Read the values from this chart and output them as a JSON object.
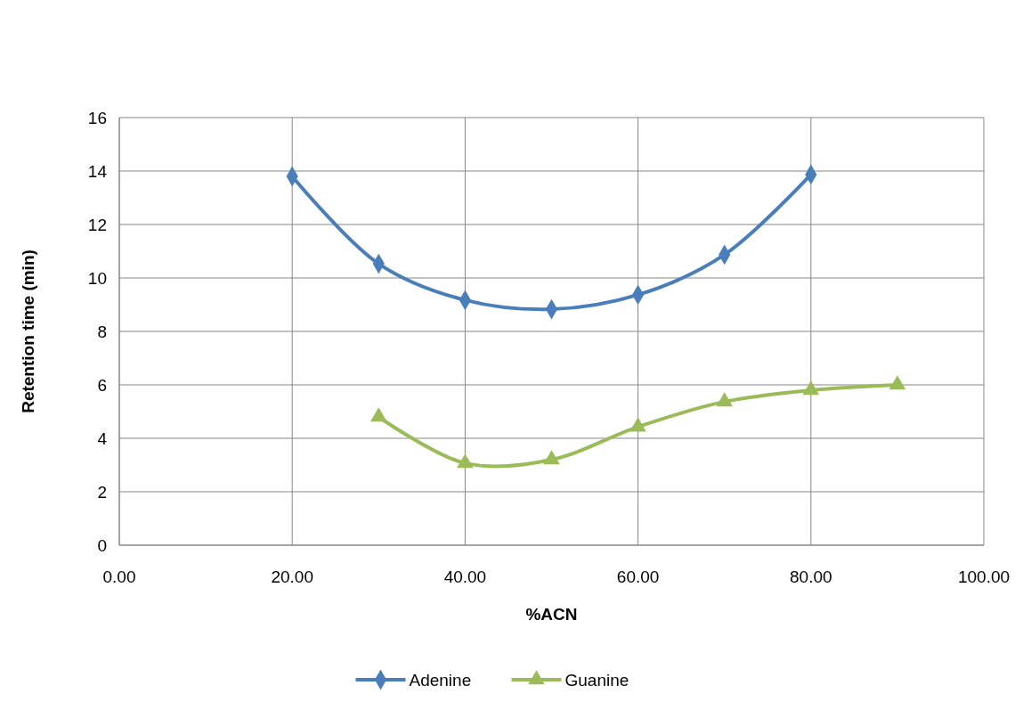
{
  "chart_data": {
    "type": "line",
    "xlabel": "%ACN",
    "ylabel": "Retention time (min)",
    "xlim": [
      0,
      100
    ],
    "xticks": [
      {
        "value": 0,
        "label": "0.00"
      },
      {
        "value": 20,
        "label": "20.00"
      },
      {
        "value": 40,
        "label": "40.00"
      },
      {
        "value": 60,
        "label": "60.00"
      },
      {
        "value": 80,
        "label": "80.00"
      },
      {
        "value": 100,
        "label": "100.00"
      }
    ],
    "ylim": [
      0,
      16
    ],
    "yticks": [
      0,
      2,
      4,
      6,
      8,
      10,
      12,
      14,
      16
    ],
    "grid": true,
    "legend": "bottom",
    "line_style": "solid",
    "series": [
      {
        "name": "Adenine",
        "color": "#4a7ebb",
        "marker": "diamond",
        "x": [
          20,
          30,
          40,
          50,
          60,
          70,
          80
        ],
        "values": [
          13.8,
          10.53,
          9.17,
          8.83,
          9.37,
          10.87,
          13.87
        ]
      },
      {
        "name": "Guanine",
        "color": "#9bbb59",
        "marker": "triangle",
        "x": [
          30,
          40,
          50,
          60,
          70,
          80,
          90
        ],
        "values": [
          4.8,
          3.07,
          3.2,
          4.43,
          5.37,
          5.8,
          6.0
        ]
      }
    ]
  }
}
